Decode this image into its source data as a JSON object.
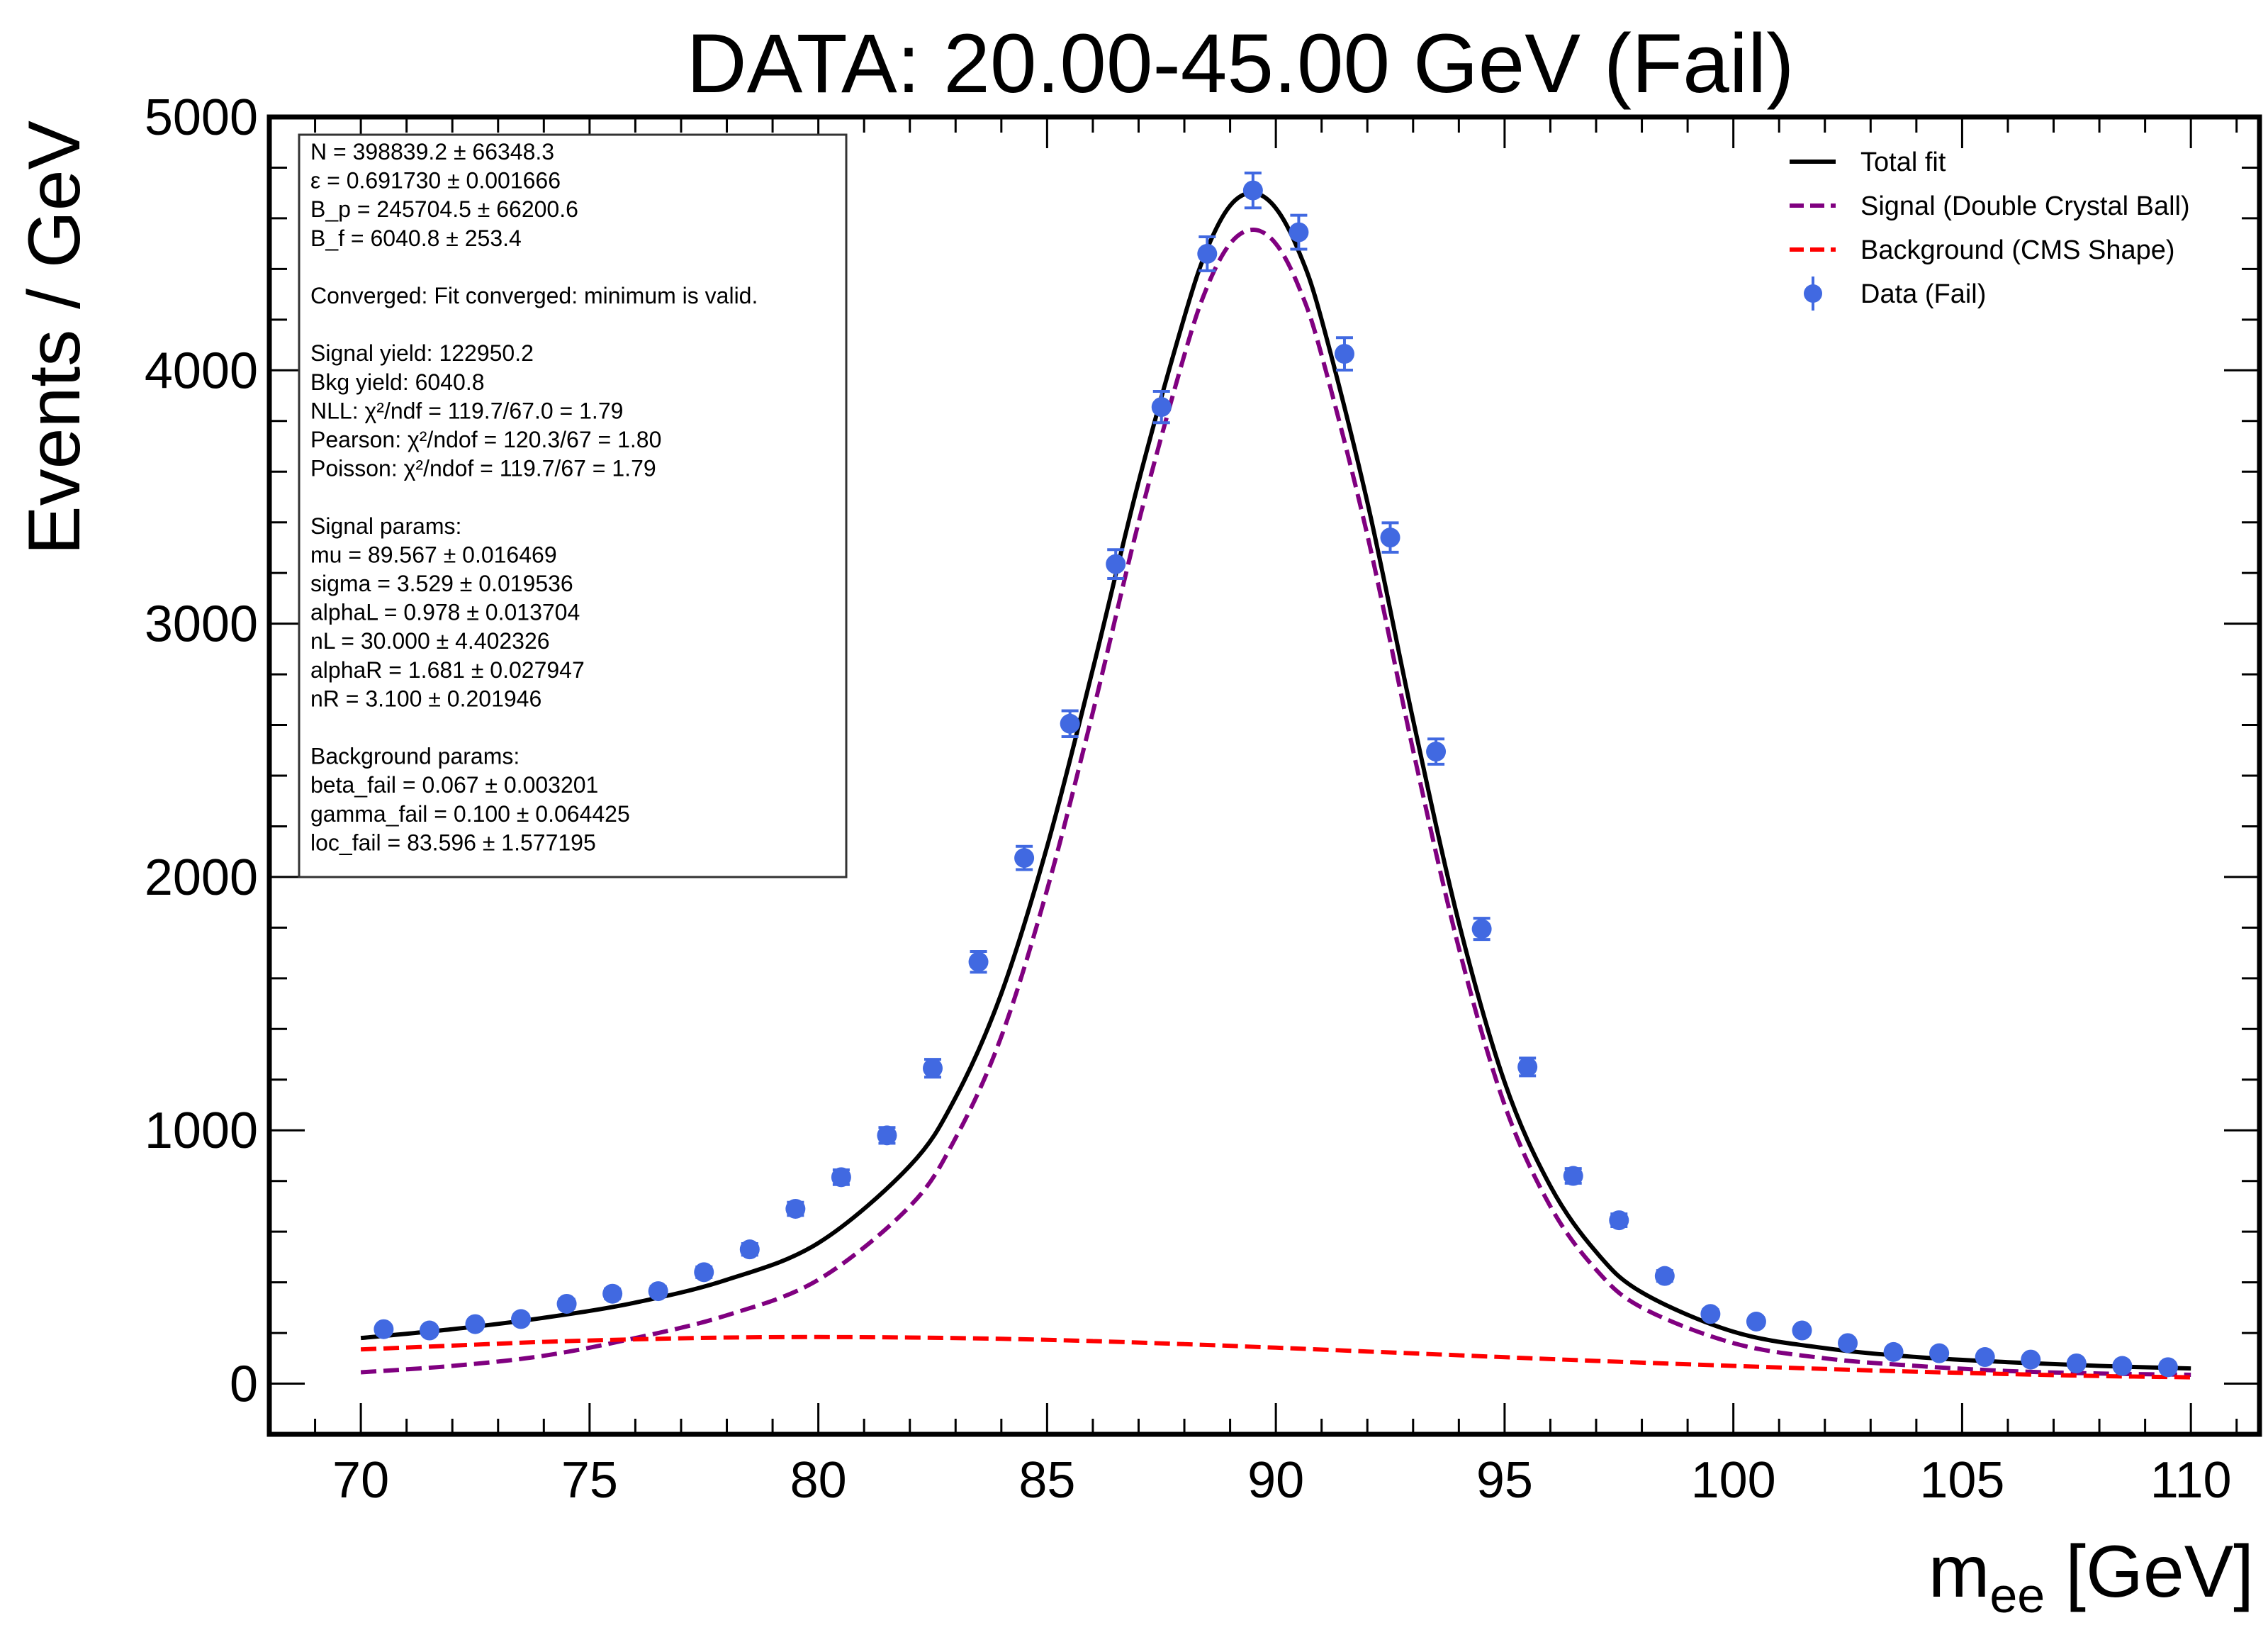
{
  "chart_data": {
    "type": "line",
    "title": "DATA: 20.00-45.00 GeV (Fail)",
    "xlabel": {
      "main": "m",
      "sub": "ee",
      "unit": " [GeV]"
    },
    "ylabel": "Events / GeV",
    "xlim": [
      68,
      111.5
    ],
    "ylim": [
      -200,
      5000
    ],
    "xticks": [
      70,
      75,
      80,
      85,
      90,
      95,
      100,
      105,
      110
    ],
    "yticks": [
      0,
      1000,
      2000,
      3000,
      4000,
      5000
    ],
    "xtick_labels": [
      "70",
      "75",
      "80",
      "85",
      "90",
      "95",
      "100",
      "105",
      "110"
    ],
    "ytick_labels": [
      "0",
      "1000",
      "2000",
      "3000",
      "4000",
      "5000"
    ],
    "grid": false,
    "legend_position": "top-right",
    "legend": [
      {
        "label": "Total fit",
        "color": "#000000",
        "style": "solid"
      },
      {
        "label": "Signal (Double Crystal Ball)",
        "color": "#800080",
        "style": "dashed"
      },
      {
        "label": "Background (CMS Shape)",
        "color": "#ff0000",
        "style": "dashed"
      },
      {
        "label": "Data (Fail)",
        "color": "#4169e1",
        "style": "marker"
      }
    ],
    "data_points": {
      "name": "Data (Fail)",
      "color": "#4169e1",
      "x": [
        70.5,
        71.5,
        72.5,
        73.5,
        74.5,
        75.5,
        76.5,
        77.5,
        78.5,
        79.5,
        80.5,
        81.5,
        82.5,
        83.5,
        84.5,
        85.5,
        86.5,
        87.5,
        88.5,
        89.5,
        90.5,
        91.5,
        92.5,
        93.5,
        94.5,
        95.5,
        96.5,
        97.5,
        98.5,
        99.5,
        100.5,
        101.5,
        102.5,
        103.5,
        104.5,
        105.5,
        106.5,
        107.5,
        108.5,
        109.5
      ],
      "y": [
        215,
        210,
        235,
        255,
        315,
        355,
        365,
        440,
        530,
        690,
        815,
        980,
        1245,
        1665,
        2075,
        2605,
        3235,
        3855,
        4460,
        4710,
        4545,
        4065,
        3340,
        2495,
        1795,
        1250,
        820,
        645,
        425,
        275,
        245,
        210,
        160,
        125,
        120,
        105,
        95,
        80,
        70,
        65
      ],
      "yerr": [
        15,
        15,
        15,
        16,
        18,
        19,
        19,
        21,
        23,
        26,
        29,
        31,
        35,
        41,
        46,
        51,
        57,
        62,
        67,
        69,
        67,
        64,
        58,
        50,
        42,
        35,
        29,
        25,
        21,
        17,
        16,
        15,
        13,
        11,
        11,
        10,
        10,
        9,
        8,
        8
      ]
    },
    "curves": [
      {
        "name": "Total fit",
        "color": "#000000",
        "x": [
          70,
          72,
          74,
          76,
          78,
          80,
          82,
          83,
          84,
          85,
          86,
          87,
          88,
          88.5,
          89,
          89.5,
          90,
          90.5,
          91,
          92,
          93,
          94,
          95,
          96,
          97,
          98,
          100,
          102,
          104,
          106,
          108,
          110
        ],
        "y": [
          180,
          215,
          260,
          320,
          410,
          555,
          860,
          1130,
          1540,
          2120,
          2820,
          3560,
          4210,
          4480,
          4650,
          4700,
          4640,
          4470,
          4200,
          3480,
          2620,
          1820,
          1190,
          780,
          520,
          360,
          205,
          140,
          105,
          85,
          70,
          60
        ]
      },
      {
        "name": "Signal (Double Crystal Ball)",
        "color": "#800080",
        "x": [
          70,
          72,
          74,
          76,
          78,
          80,
          82,
          83,
          84,
          85,
          86,
          87,
          88,
          88.5,
          89,
          89.5,
          90,
          90.5,
          91,
          92,
          93,
          94,
          95,
          96,
          97,
          98,
          100,
          102,
          104,
          106,
          108,
          110
        ],
        "y": [
          45,
          70,
          110,
          180,
          270,
          410,
          700,
          970,
          1370,
          1950,
          2650,
          3400,
          4060,
          4330,
          4500,
          4555,
          4500,
          4330,
          4060,
          3350,
          2500,
          1720,
          1100,
          700,
          450,
          300,
          160,
          100,
          70,
          50,
          40,
          35
        ]
      },
      {
        "name": "Background (CMS Shape)",
        "color": "#ff0000",
        "x": [
          70,
          72,
          74,
          76,
          78,
          80,
          82,
          84,
          86,
          88,
          90,
          92,
          94,
          96,
          98,
          100,
          102,
          104,
          106,
          108,
          110
        ],
        "y": [
          135,
          150,
          165,
          175,
          182,
          184,
          182,
          177,
          168,
          156,
          142,
          127,
          112,
          97,
          83,
          70,
          58,
          47,
          38,
          30,
          25
        ]
      }
    ],
    "info_box": [
      "N = 398839.2 ± 66348.3",
      "ε = 0.691730 ± 0.001666",
      "B_p = 245704.5 ± 66200.6",
      "B_f = 6040.8 ± 253.4",
      "",
      "Converged: Fit converged: minimum is valid.",
      "",
      "Signal yield: 122950.2",
      "Bkg yield: 6040.8",
      "NLL: χ²/ndf = 119.7/67.0 = 1.79",
      "Pearson: χ²/ndof = 120.3/67 = 1.80",
      "Poisson: χ²/ndof = 119.7/67 = 1.79",
      "",
      "Signal params:",
      "mu = 89.567 ± 0.016469",
      "sigma = 3.529 ± 0.019536",
      "alphaL = 0.978 ± 0.013704",
      "nL = 30.000 ± 4.402326",
      "alphaR = 1.681 ± 0.027947",
      "nR = 3.100 ± 0.201946",
      "",
      "Background params:",
      "beta_fail = 0.067 ± 0.003201",
      "gamma_fail = 0.100 ± 0.064425",
      "loc_fail = 83.596 ± 1.577195"
    ]
  }
}
